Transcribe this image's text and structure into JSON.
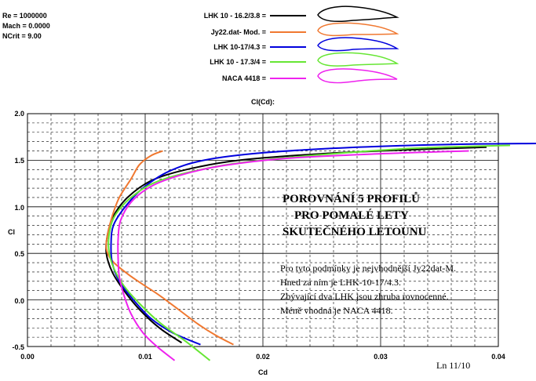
{
  "chart_data": {
    "type": "line",
    "title": "Cl(Cd):",
    "xlabel": "Cd",
    "ylabel": "Cl",
    "xlim": [
      0.0,
      0.04
    ],
    "ylim": [
      -0.5,
      2.0
    ],
    "x_ticks": [
      "0.00",
      "0.01",
      "0.02",
      "0.03",
      "0.04"
    ],
    "y_ticks": [
      "-0.5",
      "0.0",
      "0.5",
      "1.0",
      "1.5",
      "2.0"
    ],
    "grid": true,
    "conditions": [
      "Re = 1000000",
      "Mach = 0.0000",
      "NCrit = 9.00"
    ],
    "legend_position": "top",
    "series": [
      {
        "name": "LHK 10 - 16.2/3.8 =",
        "color": "#000000",
        "points": [
          [
            0.0131,
            -0.46
          ],
          [
            0.0112,
            -0.3
          ],
          [
            0.0095,
            -0.1
          ],
          [
            0.0082,
            0.1
          ],
          [
            0.0072,
            0.3
          ],
          [
            0.0067,
            0.5
          ],
          [
            0.0068,
            0.7
          ],
          [
            0.0073,
            0.9
          ],
          [
            0.0085,
            1.1
          ],
          [
            0.0105,
            1.28
          ],
          [
            0.0135,
            1.4
          ],
          [
            0.018,
            1.5
          ],
          [
            0.025,
            1.57
          ],
          [
            0.032,
            1.61
          ],
          [
            0.039,
            1.64
          ]
        ]
      },
      {
        "name": "Jy22.dat- Mod. =",
        "color": "#f07830",
        "points": [
          [
            0.0175,
            -0.48
          ],
          [
            0.016,
            -0.38
          ],
          [
            0.0145,
            -0.26
          ],
          [
            0.0128,
            -0.1
          ],
          [
            0.0112,
            0.05
          ],
          [
            0.01,
            0.15
          ],
          [
            0.0085,
            0.28
          ],
          [
            0.0072,
            0.42
          ],
          [
            0.0067,
            0.55
          ],
          [
            0.0068,
            0.7
          ],
          [
            0.0072,
            0.9
          ],
          [
            0.0078,
            1.1
          ],
          [
            0.0088,
            1.3
          ],
          [
            0.0095,
            1.45
          ],
          [
            0.0105,
            1.55
          ],
          [
            0.0115,
            1.6
          ]
        ]
      },
      {
        "name": "LHK 10-17/4.3 =",
        "color": "#0000dd",
        "points": [
          [
            0.0147,
            -0.48
          ],
          [
            0.0123,
            -0.35
          ],
          [
            0.0105,
            -0.2
          ],
          [
            0.009,
            0.0
          ],
          [
            0.0078,
            0.2
          ],
          [
            0.0072,
            0.4
          ],
          [
            0.0071,
            0.6
          ],
          [
            0.0073,
            0.8
          ],
          [
            0.0083,
            1.0
          ],
          [
            0.0098,
            1.2
          ],
          [
            0.012,
            1.38
          ],
          [
            0.015,
            1.5
          ],
          [
            0.02,
            1.58
          ],
          [
            0.028,
            1.64
          ],
          [
            0.036,
            1.67
          ],
          [
            0.0434,
            1.68
          ]
        ]
      },
      {
        "name": "LHK 10 - 17.3/4 =",
        "color": "#66e633",
        "points": [
          [
            0.0155,
            -0.65
          ],
          [
            0.0135,
            -0.45
          ],
          [
            0.0113,
            -0.25
          ],
          [
            0.0096,
            -0.05
          ],
          [
            0.0082,
            0.15
          ],
          [
            0.0073,
            0.35
          ],
          [
            0.0069,
            0.55
          ],
          [
            0.007,
            0.75
          ],
          [
            0.0075,
            0.92
          ],
          [
            0.0088,
            1.1
          ],
          [
            0.0108,
            1.26
          ],
          [
            0.014,
            1.38
          ],
          [
            0.0185,
            1.48
          ],
          [
            0.025,
            1.56
          ],
          [
            0.033,
            1.63
          ],
          [
            0.041,
            1.66
          ]
        ]
      },
      {
        "name": "NACA 4418 =",
        "color": "#ee22ee",
        "points": [
          [
            0.0125,
            -0.65
          ],
          [
            0.011,
            -0.5
          ],
          [
            0.0098,
            -0.35
          ],
          [
            0.0088,
            -0.15
          ],
          [
            0.0082,
            0.05
          ],
          [
            0.0078,
            0.25
          ],
          [
            0.0077,
            0.45
          ],
          [
            0.0077,
            0.65
          ],
          [
            0.0079,
            0.85
          ],
          [
            0.0088,
            1.05
          ],
          [
            0.0105,
            1.22
          ],
          [
            0.013,
            1.34
          ],
          [
            0.0165,
            1.44
          ],
          [
            0.022,
            1.52
          ],
          [
            0.03,
            1.57
          ],
          [
            0.0375,
            1.6
          ]
        ]
      }
    ]
  },
  "annotations": {
    "heading_lines": [
      "POROVNÁNÍ 5 PROFILŮ",
      "PRO POMALÉ LETY",
      "SKUTEČNÉHO LETOUNU"
    ],
    "note_lines": [
      "Pro tyto podmínky je nejvhodnější Jy22dat-M.",
      "Hned za ním je LHK-10-17/4.3.",
      "Zbývající dva LHK jsou zhruba rovnocenné.",
      "Méně vhodná je NACA 4418."
    ],
    "stamp": "Ln 11/10"
  }
}
